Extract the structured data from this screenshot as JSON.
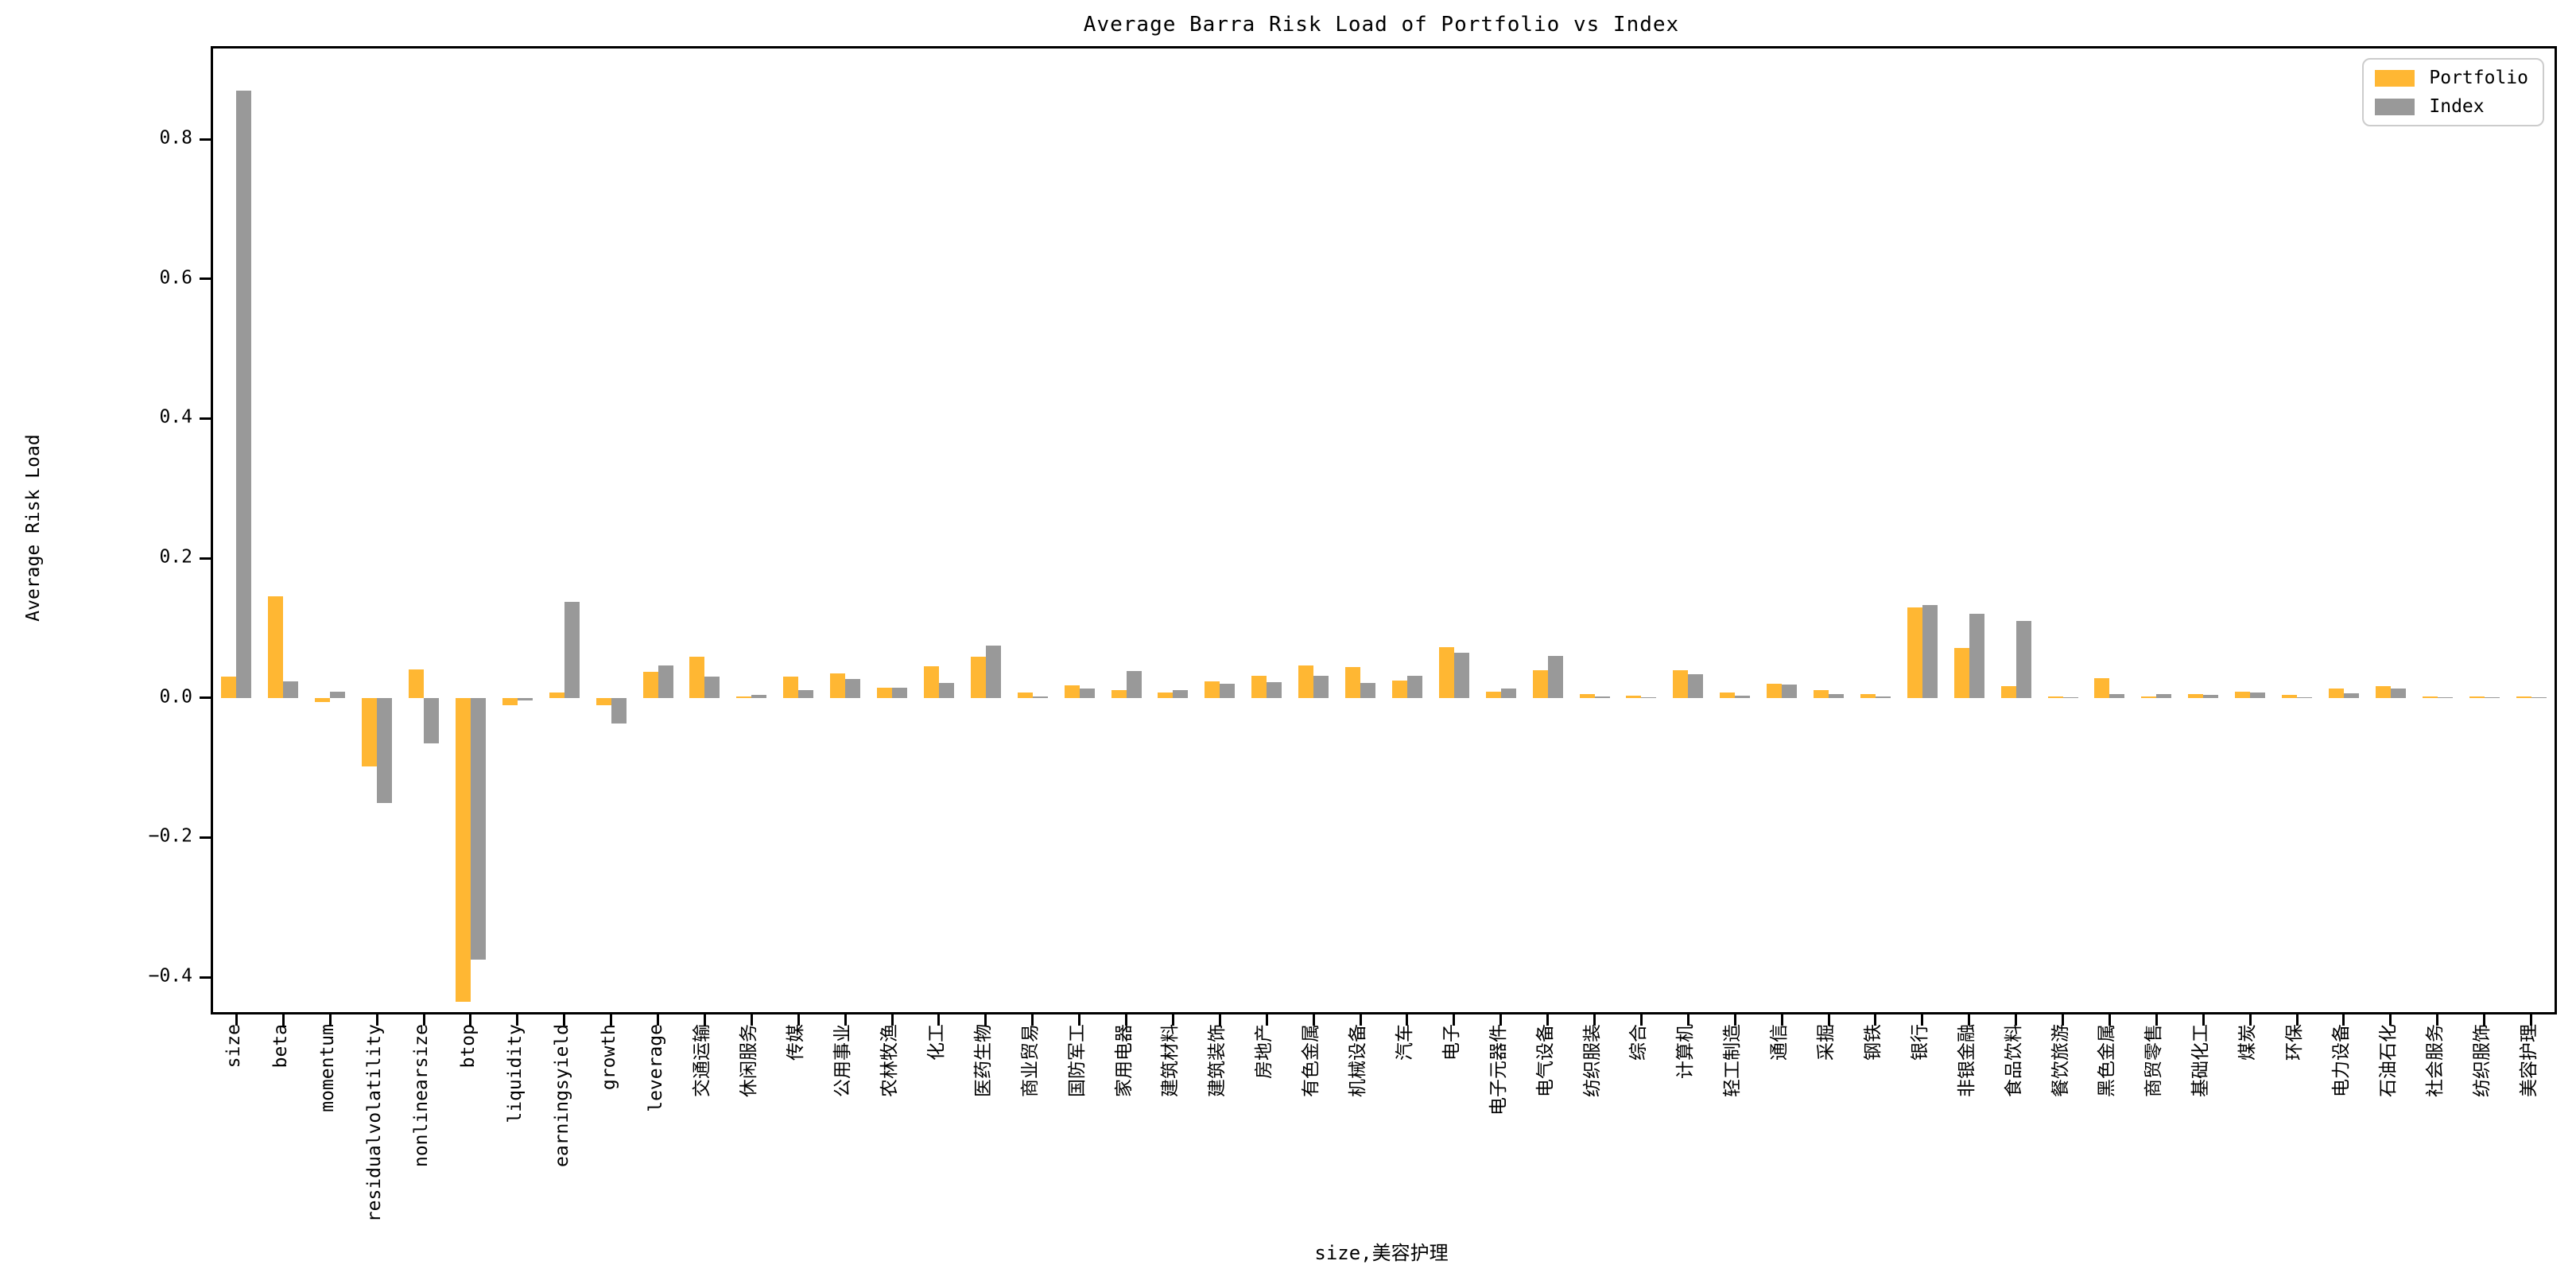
{
  "title": "Average Barra Risk Load of Portfolio vs Index",
  "ylabel": "Average Risk Load",
  "xlabel": "size,美容护理",
  "legend": {
    "items": [
      {
        "label": "Portfolio",
        "color": "#FFB733"
      },
      {
        "label": "Index",
        "color": "#999999"
      }
    ],
    "position": "upper right"
  },
  "chart_data": {
    "type": "bar",
    "title": "Average Barra Risk Load of Portfolio vs Index",
    "xlabel": "size,美容护理",
    "ylabel": "Average Risk Load",
    "ylim": [
      -0.45,
      0.93
    ],
    "yticks": [
      0.8,
      0.6,
      0.4,
      0.2,
      0.0,
      -0.2,
      -0.4
    ],
    "grid": false,
    "legend_position": "upper right",
    "categories": [
      "size",
      "beta",
      "momentum",
      "residualvolatility",
      "nonlinearsize",
      "btop",
      "liquidity",
      "earningsyield",
      "growth",
      "leverage",
      "交通运输",
      "休闲服务",
      "传媒",
      "公用事业",
      "农林牧渔",
      "化工",
      "医药生物",
      "商业贸易",
      "国防军工",
      "家用电器",
      "建筑材料",
      "建筑装饰",
      "房地产",
      "有色金属",
      "机械设备",
      "汽车",
      "电子",
      "电子元器件",
      "电气设备",
      "纺织服装",
      "综合",
      "计算机",
      "轻工制造",
      "通信",
      "采掘",
      "钢铁",
      "银行",
      "非银金融",
      "食品饮料",
      "餐饮旅游",
      "黑色金属",
      "商贸零售",
      "基础化工",
      "煤炭",
      "环保",
      "电力设备",
      "石油石化",
      "社会服务",
      "纺织服饰",
      "美容护理"
    ],
    "series": [
      {
        "name": "Portfolio",
        "color": "#FFB733",
        "values": [
          0.031,
          0.145,
          -0.006,
          -0.098,
          0.041,
          -0.435,
          -0.011,
          0.008,
          -0.011,
          0.037,
          0.059,
          0.002,
          0.031,
          0.035,
          0.015,
          0.045,
          0.059,
          0.008,
          0.018,
          0.011,
          0.008,
          0.024,
          0.032,
          0.047,
          0.044,
          0.025,
          0.073,
          0.009,
          0.04,
          0.006,
          0.003,
          0.04,
          0.008,
          0.02,
          0.011,
          0.006,
          0.129,
          0.071,
          0.017,
          0.002,
          0.028,
          0.002,
          0.005,
          0.009,
          0.004,
          0.013,
          0.017,
          0.002,
          0.002,
          0.002
        ]
      },
      {
        "name": "Index",
        "color": "#999999",
        "values": [
          0.87,
          0.024,
          0.009,
          -0.15,
          -0.065,
          -0.375,
          -0.004,
          0.138,
          -0.037,
          0.047,
          0.03,
          0.004,
          0.011,
          0.027,
          0.015,
          0.021,
          0.075,
          0.002,
          0.013,
          0.039,
          0.011,
          0.02,
          0.023,
          0.032,
          0.021,
          0.032,
          0.065,
          0.013,
          0.06,
          0.002,
          0.001,
          0.034,
          0.003,
          0.019,
          0.006,
          0.002,
          0.133,
          0.12,
          0.11,
          0.001,
          0.006,
          0.005,
          0.004,
          0.008,
          0.001,
          0.007,
          0.013,
          0.001,
          0.001,
          0.001
        ]
      }
    ]
  }
}
